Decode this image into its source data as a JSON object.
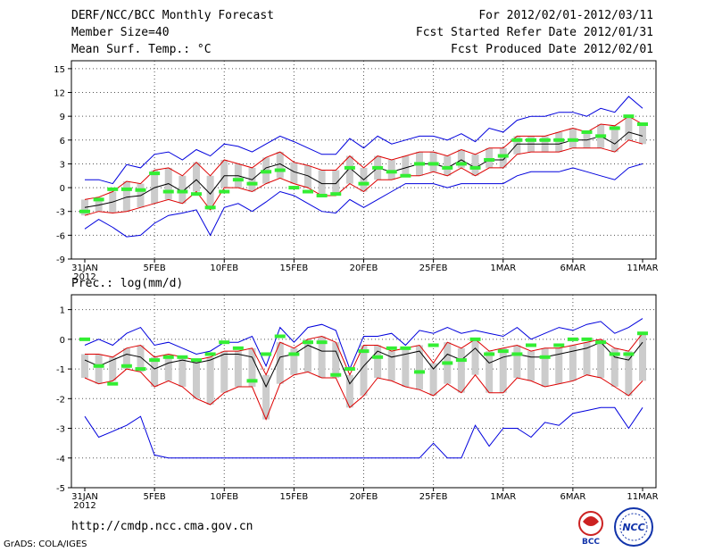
{
  "header": {
    "title": "DERF/NCC/BCC Monthly Forecast",
    "member_size": "Member Size=40",
    "variable": "Mean Surf. Temp.: °C",
    "period": "For 2012/02/01-2012/03/11",
    "started": "Fcst Started Refer Date 2012/01/31",
    "produced": "Fcst Produced Date 2012/02/01"
  },
  "footer": {
    "url": "http://cmdp.ncc.cma.gov.cn",
    "grads": "GrADS: COLA/IGES",
    "logo_bcc": "BCC",
    "logo_ncc": "NCC"
  },
  "colors": {
    "spread_outer": "#0000dd",
    "spread_inner": "#dd0000",
    "mean": "#000000",
    "obs": "#33ee33",
    "box": "#cccccc"
  },
  "chart_data": [
    {
      "type": "line",
      "title": "Mean Surf. Temp.: °C",
      "ylim": [
        -9,
        16
      ],
      "yticks": [
        -9,
        -6,
        -3,
        0,
        3,
        6,
        9,
        12,
        15
      ],
      "xticks": [
        "31JAN",
        "5FEB",
        "10FEB",
        "15FEB",
        "20FEB",
        "25FEB",
        "1MAR",
        "6MAR",
        "11MAR"
      ],
      "xtick_sub": "2012",
      "x_days": 41,
      "series": [
        {
          "name": "max",
          "values": [
            1.0,
            1.0,
            0.5,
            2.9,
            2.5,
            4.2,
            4.5,
            3.5,
            4.8,
            4.0,
            5.5,
            5.2,
            4.5,
            5.5,
            6.5,
            5.8,
            5.0,
            4.2,
            4.2,
            6.2,
            5.0,
            6.5,
            5.5,
            6.0,
            6.5,
            6.5,
            6.0,
            6.8,
            5.8,
            7.5,
            7.0,
            8.5,
            9.0,
            9.0,
            9.5,
            9.5,
            9.0,
            10.0,
            9.5,
            11.5,
            10.0
          ]
        },
        {
          "name": "upper",
          "values": [
            -1.5,
            -1.2,
            -0.5,
            0.8,
            0.5,
            2.2,
            2.5,
            1.5,
            3.2,
            1.5,
            3.5,
            3.0,
            2.5,
            3.8,
            4.5,
            3.2,
            2.8,
            2.2,
            2.2,
            4.0,
            2.5,
            4.0,
            3.5,
            4.0,
            4.5,
            4.5,
            4.0,
            4.8,
            4.2,
            5.0,
            5.0,
            6.5,
            6.5,
            6.5,
            7.0,
            7.5,
            7.0,
            8.0,
            7.8,
            9.0,
            8.0
          ]
        },
        {
          "name": "mean",
          "values": [
            -2.5,
            -2.2,
            -1.8,
            -1.2,
            -1.0,
            0.0,
            0.5,
            -0.5,
            1.0,
            -0.8,
            1.5,
            1.5,
            1.0,
            2.5,
            3.0,
            2.0,
            1.5,
            0.5,
            0.5,
            2.5,
            1.0,
            2.5,
            2.0,
            2.5,
            3.0,
            3.0,
            2.5,
            3.5,
            2.5,
            3.5,
            3.5,
            5.5,
            5.5,
            5.5,
            5.5,
            6.0,
            6.0,
            6.5,
            5.5,
            7.0,
            6.5
          ]
        },
        {
          "name": "lower",
          "values": [
            -3.5,
            -3.0,
            -3.2,
            -3.0,
            -2.5,
            -2.0,
            -1.5,
            -2.0,
            -0.5,
            -2.8,
            0.0,
            0.0,
            -0.5,
            0.5,
            1.2,
            0.5,
            0.0,
            -1.0,
            -1.0,
            0.5,
            -0.5,
            1.0,
            1.0,
            1.5,
            1.5,
            2.0,
            1.5,
            2.5,
            1.5,
            2.5,
            2.5,
            4.2,
            4.5,
            4.5,
            4.5,
            5.0,
            5.0,
            5.0,
            4.5,
            6.0,
            5.5
          ]
        },
        {
          "name": "min",
          "values": [
            -5.2,
            -4.0,
            -5.0,
            -6.2,
            -6.0,
            -4.5,
            -3.5,
            -3.2,
            -2.8,
            -6.0,
            -2.5,
            -2.0,
            -3.0,
            -1.8,
            -0.5,
            -1.0,
            -2.0,
            -3.0,
            -3.2,
            -1.5,
            -2.5,
            -1.5,
            -0.5,
            0.5,
            0.5,
            0.5,
            0.0,
            0.5,
            0.5,
            0.5,
            0.5,
            1.5,
            2.0,
            2.0,
            2.0,
            2.5,
            2.0,
            1.5,
            1.0,
            2.5,
            3.0
          ]
        },
        {
          "name": "obs",
          "values": [
            -3.0,
            -1.5,
            -0.2,
            -0.2,
            -0.3,
            1.8,
            -0.5,
            -0.5,
            -0.8,
            -2.5,
            -0.5,
            1.0,
            0.5,
            2.0,
            2.2,
            0.0,
            -0.5,
            -1.0,
            -0.8,
            2.5,
            0.5,
            2.5,
            2.0,
            1.5,
            3.0,
            3.0,
            2.5,
            3.0,
            2.5,
            3.5,
            4.0,
            6.0,
            6.0,
            6.0,
            6.0,
            6.0,
            7.0,
            6.5,
            7.5,
            9.0,
            8.0
          ]
        }
      ]
    },
    {
      "type": "line",
      "title": "Prec.: log(mm/d)",
      "ylim": [
        -5,
        1.5
      ],
      "yticks": [
        -5,
        -4,
        -3,
        -2,
        -1,
        0,
        1
      ],
      "xticks": [
        "31JAN",
        "5FEB",
        "10FEB",
        "15FEB",
        "20FEB",
        "25FEB",
        "1MAR",
        "6MAR",
        "11MAR"
      ],
      "xtick_sub": "2012",
      "x_days": 41,
      "series": [
        {
          "name": "max",
          "values": [
            -0.2,
            0.0,
            -0.2,
            0.2,
            0.4,
            -0.2,
            -0.1,
            -0.3,
            -0.5,
            -0.4,
            -0.1,
            -0.1,
            0.1,
            -0.9,
            0.4,
            -0.1,
            0.4,
            0.5,
            0.3,
            -1.0,
            0.1,
            0.1,
            0.2,
            -0.2,
            0.3,
            0.2,
            0.4,
            0.2,
            0.3,
            0.2,
            0.1,
            0.4,
            0.0,
            0.2,
            0.4,
            0.3,
            0.5,
            0.6,
            0.2,
            0.4,
            0.7
          ]
        },
        {
          "name": "upper",
          "values": [
            -0.5,
            -0.5,
            -0.6,
            -0.3,
            -0.2,
            -0.6,
            -0.5,
            -0.6,
            -0.7,
            -0.6,
            -0.4,
            -0.4,
            -0.3,
            -1.2,
            -0.1,
            -0.3,
            0.0,
            0.1,
            -0.1,
            -1.2,
            -0.2,
            -0.2,
            -0.4,
            -0.3,
            -0.2,
            -0.8,
            -0.1,
            -0.3,
            0.0,
            -0.4,
            -0.3,
            -0.2,
            -0.4,
            -0.3,
            -0.3,
            -0.2,
            -0.1,
            0.0,
            -0.3,
            -0.4,
            0.2
          ]
        },
        {
          "name": "mean",
          "values": [
            -0.7,
            -0.9,
            -0.7,
            -0.5,
            -0.6,
            -1.0,
            -0.8,
            -0.7,
            -0.8,
            -0.7,
            -0.5,
            -0.5,
            -0.6,
            -1.6,
            -0.6,
            -0.5,
            -0.2,
            -0.4,
            -0.4,
            -1.5,
            -0.9,
            -0.4,
            -0.6,
            -0.5,
            -0.4,
            -1.0,
            -0.5,
            -0.7,
            -0.3,
            -0.8,
            -0.6,
            -0.5,
            -0.6,
            -0.6,
            -0.5,
            -0.4,
            -0.3,
            -0.1,
            -0.6,
            -0.7,
            -0.1
          ]
        },
        {
          "name": "lower",
          "values": [
            -1.3,
            -1.5,
            -1.4,
            -1.0,
            -1.1,
            -1.6,
            -1.4,
            -1.6,
            -2.0,
            -2.2,
            -1.8,
            -1.6,
            -1.6,
            -2.7,
            -1.5,
            -1.2,
            -1.1,
            -1.3,
            -1.3,
            -2.3,
            -1.9,
            -1.3,
            -1.4,
            -1.6,
            -1.7,
            -1.9,
            -1.5,
            -1.8,
            -1.2,
            -1.8,
            -1.8,
            -1.3,
            -1.4,
            -1.6,
            -1.5,
            -1.4,
            -1.2,
            -1.3,
            -1.6,
            -1.9,
            -1.4
          ]
        },
        {
          "name": "min",
          "values": [
            -2.6,
            -3.3,
            -3.1,
            -2.9,
            -2.6,
            -3.9,
            -4.0,
            -4.0,
            -4.0,
            -4.0,
            -4.0,
            -4.0,
            -4.0,
            -4.0,
            -4.0,
            -4.0,
            -4.0,
            -4.0,
            -4.0,
            -4.0,
            -4.0,
            -4.0,
            -4.0,
            -4.0,
            -4.0,
            -3.5,
            -4.0,
            -4.0,
            -2.9,
            -3.6,
            -3.0,
            -3.0,
            -3.3,
            -2.8,
            -2.9,
            -2.5,
            -2.4,
            -2.3,
            -2.3,
            -3.0,
            -2.3
          ]
        },
        {
          "name": "obs",
          "values": [
            0.0,
            -0.9,
            -1.5,
            -0.9,
            -1.0,
            -0.7,
            -0.6,
            -0.6,
            -0.7,
            -0.5,
            -0.1,
            -0.3,
            -1.4,
            -0.5,
            0.1,
            -0.5,
            -0.1,
            -0.1,
            -1.2,
            -1.0,
            -0.4,
            -0.6,
            -0.3,
            -0.3,
            -1.1,
            -0.2,
            -0.8,
            -0.7,
            0.0,
            -0.5,
            -0.4,
            -0.5,
            -0.2,
            -0.6,
            -0.2,
            0.0,
            0.0,
            -0.1,
            -0.5,
            -0.5,
            0.2
          ]
        }
      ]
    }
  ]
}
